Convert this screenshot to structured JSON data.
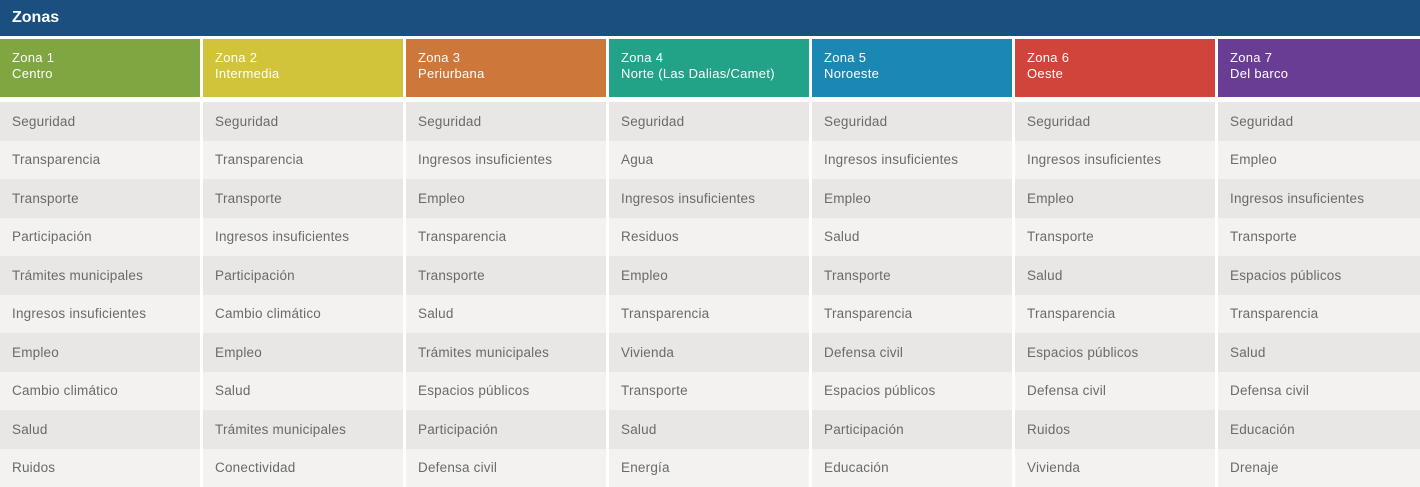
{
  "title": "Zonas",
  "colors": {
    "title_bar": "#1a4f7f",
    "zona_1": "#7fa640",
    "zona_2": "#d1c33a",
    "zona_3": "#cd773b",
    "zona_4": "#22a287",
    "zona_5": "#1a88b3",
    "zona_6": "#d1443b",
    "zona_7": "#6a3d94"
  },
  "zonas": [
    {
      "name": "Zona 1",
      "subtitle": "Centro",
      "color": "#7fa640",
      "items": [
        "Seguridad",
        "Transparencia",
        "Transporte",
        "Participación",
        "Trámites municipales",
        "Ingresos insuficientes",
        "Empleo",
        "Cambio climático",
        "Salud",
        "Ruidos"
      ]
    },
    {
      "name": "Zona 2",
      "subtitle": "Intermedia",
      "color": "#d1c33a",
      "items": [
        "Seguridad",
        "Transparencia",
        "Transporte",
        "Ingresos insuficientes",
        "Participación",
        "Cambio climático",
        "Empleo",
        "Salud",
        "Trámites municipales",
        "Conectividad"
      ]
    },
    {
      "name": "Zona 3",
      "subtitle": "Periurbana",
      "color": "#cd773b",
      "items": [
        "Seguridad",
        "Ingresos insuficientes",
        "Empleo",
        "Transparencia",
        "Transporte",
        "Salud",
        "Trámites municipales",
        "Espacios públicos",
        "Participación",
        "Defensa civil"
      ]
    },
    {
      "name": "Zona 4",
      "subtitle": "Norte (Las Dalias/Camet)",
      "color": "#22a287",
      "items": [
        "Seguridad",
        "Agua",
        "Ingresos insuficientes",
        "Residuos",
        "Empleo",
        "Transparencia",
        "Vivienda",
        "Transporte",
        "Salud",
        "Energía"
      ]
    },
    {
      "name": "Zona 5",
      "subtitle": "Noroeste",
      "color": "#1a88b3",
      "items": [
        "Seguridad",
        "Ingresos insuficientes",
        "Empleo",
        "Salud",
        "Transporte",
        "Transparencia",
        "Defensa civil",
        "Espacios públicos",
        "Participación",
        "Educación"
      ]
    },
    {
      "name": "Zona 6",
      "subtitle": "Oeste",
      "color": "#d1443b",
      "items": [
        "Seguridad",
        "Ingresos insuficientes",
        "Empleo",
        "Transporte",
        "Salud",
        "Transparencia",
        "Espacios públicos",
        "Defensa civil",
        "Ruidos",
        "Vivienda"
      ]
    },
    {
      "name": "Zona 7",
      "subtitle": "Del barco",
      "color": "#6a3d94",
      "items": [
        "Seguridad",
        "Empleo",
        "Ingresos insuficientes",
        "Transporte",
        "Espacios públicos",
        "Transparencia",
        "Salud",
        "Defensa civil",
        "Educación",
        "Drenaje"
      ]
    }
  ]
}
